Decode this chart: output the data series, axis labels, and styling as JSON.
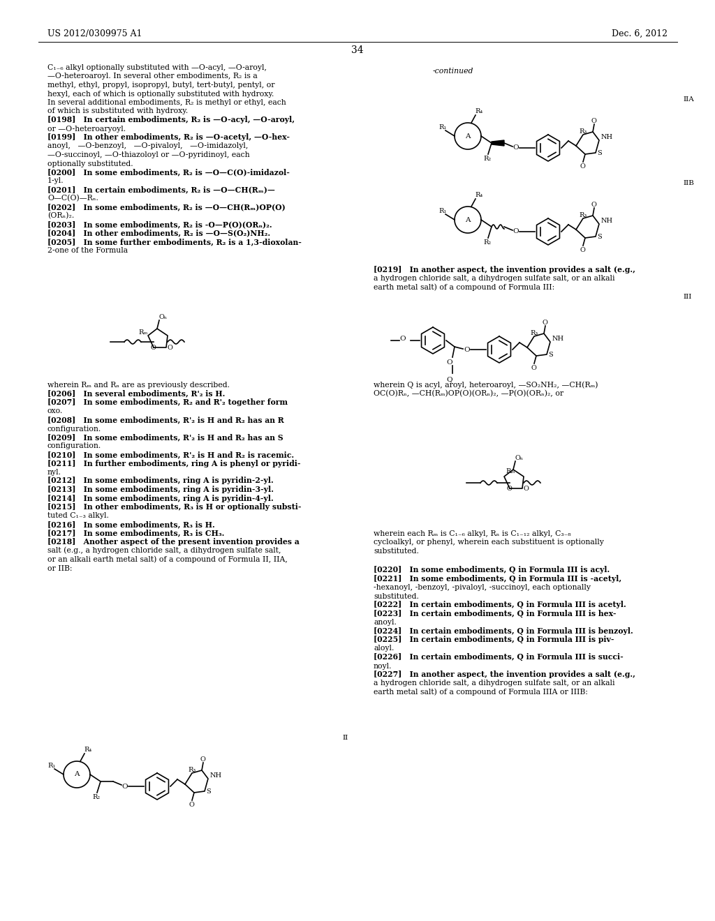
{
  "bg": "#ffffff",
  "header_left": "US 2012/0309975 A1",
  "header_right": "Dec. 6, 2012",
  "page_num": "34"
}
